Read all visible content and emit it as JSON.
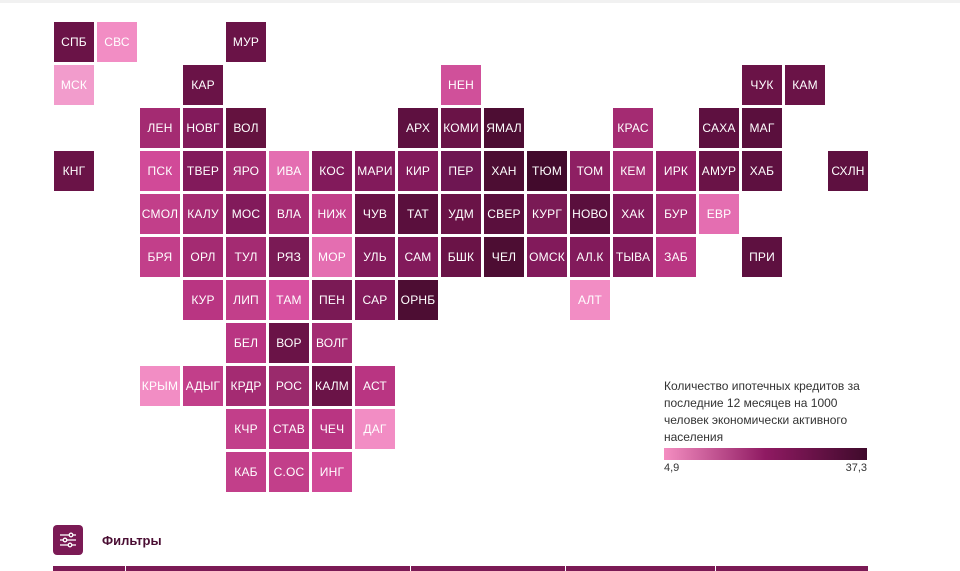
{
  "map": {
    "tiles": [
      {
        "label": "СПБ",
        "color": "#6a1347"
      },
      {
        "label": "СВС",
        "color": "#f28dc4"
      },
      {
        "label": "МУР",
        "color": "#6a1347"
      },
      {
        "label": "МСК",
        "color": "#f29ccc"
      },
      {
        "label": "КАР",
        "color": "#6a1347"
      },
      {
        "label": "НЕН",
        "color": "#d0509a"
      },
      {
        "label": "ЧУК",
        "color": "#6a1347"
      },
      {
        "label": "КАМ",
        "color": "#6a1347"
      },
      {
        "label": "ЛЕН",
        "color": "#a42b72"
      },
      {
        "label": "НОВГ",
        "color": "#821a5b"
      },
      {
        "label": "ВОЛ",
        "color": "#64123f"
      },
      {
        "label": "АРХ",
        "color": "#5e1040"
      },
      {
        "label": "КОМИ",
        "color": "#6a1347"
      },
      {
        "label": "ЯМАЛ",
        "color": "#4d0d33"
      },
      {
        "label": "КРАС",
        "color": "#a42b72"
      },
      {
        "label": "САХА",
        "color": "#5e1040"
      },
      {
        "label": "МАГ",
        "color": "#5a0f3d"
      },
      {
        "label": "КНГ",
        "color": "#6a1347"
      },
      {
        "label": "ПСК",
        "color": "#d14a98"
      },
      {
        "label": "ТВЕР",
        "color": "#821a5b"
      },
      {
        "label": "ЯРО",
        "color": "#a42b72"
      },
      {
        "label": "ИВА",
        "color": "#e46eb1"
      },
      {
        "label": "КОС",
        "color": "#821a5b"
      },
      {
        "label": "МАРИ",
        "color": "#821a5b"
      },
      {
        "label": "КИР",
        "color": "#821a5b"
      },
      {
        "label": "ПЕР",
        "color": "#6e1652"
      },
      {
        "label": "ХАН",
        "color": "#4d0d33"
      },
      {
        "label": "ТЮМ",
        "color": "#420a2c"
      },
      {
        "label": "ТОМ",
        "color": "#8e1f63"
      },
      {
        "label": "КЕМ",
        "color": "#a42b72"
      },
      {
        "label": "ИРК",
        "color": "#951f66"
      },
      {
        "label": "АМУР",
        "color": "#6a1347"
      },
      {
        "label": "ХАБ",
        "color": "#5e1040"
      },
      {
        "label": "СХЛН",
        "color": "#5e1040"
      },
      {
        "label": "СМОЛ",
        "color": "#c23f8a"
      },
      {
        "label": "КАЛУ",
        "color": "#a42b72"
      },
      {
        "label": "МОС",
        "color": "#821a5b"
      },
      {
        "label": "ВЛА",
        "color": "#a42b72"
      },
      {
        "label": "НИЖ",
        "color": "#c23f8a"
      },
      {
        "label": "ЧУВ",
        "color": "#6a1347"
      },
      {
        "label": "ТАТ",
        "color": "#5a0f3d"
      },
      {
        "label": "УДМ",
        "color": "#6a1347"
      },
      {
        "label": "СВЕР",
        "color": "#5a0f3d"
      },
      {
        "label": "КУРГ",
        "color": "#7a1a55"
      },
      {
        "label": "НОВО",
        "color": "#5a0f3d"
      },
      {
        "label": "ХАК",
        "color": "#821a5b"
      },
      {
        "label": "БУР",
        "color": "#a42b72"
      },
      {
        "label": "ЕВР",
        "color": "#e46eb1"
      },
      {
        "label": "БРЯ",
        "color": "#c23f8a"
      },
      {
        "label": "ОРЛ",
        "color": "#a42b72"
      },
      {
        "label": "ТУЛ",
        "color": "#a42b72"
      },
      {
        "label": "РЯЗ",
        "color": "#7a1a55"
      },
      {
        "label": "МОР",
        "color": "#e46eb1"
      },
      {
        "label": "УЛЬ",
        "color": "#821a5b"
      },
      {
        "label": "САМ",
        "color": "#821a5b"
      },
      {
        "label": "БШК",
        "color": "#6a1347"
      },
      {
        "label": "ЧЕЛ",
        "color": "#4d0d33"
      },
      {
        "label": "ОМСК",
        "color": "#821a5b"
      },
      {
        "label": "АЛ.К",
        "color": "#821a5b"
      },
      {
        "label": "ТЫВА",
        "color": "#821a5b"
      },
      {
        "label": "ЗАБ",
        "color": "#b93582"
      },
      {
        "label": "ПРИ",
        "color": "#5e1040"
      },
      {
        "label": "КУР",
        "color": "#b93582"
      },
      {
        "label": "ЛИП",
        "color": "#c23f8a"
      },
      {
        "label": "ТАМ",
        "color": "#d750a0"
      },
      {
        "label": "ПЕН",
        "color": "#7a1a55"
      },
      {
        "label": "САР",
        "color": "#821a5b"
      },
      {
        "label": "ОРНБ",
        "color": "#4d0d33"
      },
      {
        "label": "АЛТ",
        "color": "#f28dc4"
      },
      {
        "label": "БЕЛ",
        "color": "#b93582"
      },
      {
        "label": "ВОР",
        "color": "#6a1347"
      },
      {
        "label": "ВОЛГ",
        "color": "#a42b72"
      },
      {
        "label": "КРЫМ",
        "color": "#f28dc4"
      },
      {
        "label": "АДЫГ",
        "color": "#c23f8a"
      },
      {
        "label": "КРДР",
        "color": "#a42b72"
      },
      {
        "label": "РОС",
        "color": "#9a2a6c"
      },
      {
        "label": "КАЛМ",
        "color": "#6a1347"
      },
      {
        "label": "АСТ",
        "color": "#b93582"
      },
      {
        "label": "КЧР",
        "color": "#c23f8a"
      },
      {
        "label": "СТАВ",
        "color": "#b93582"
      },
      {
        "label": "ЧЕЧ",
        "color": "#b93582"
      },
      {
        "label": "ДАГ",
        "color": "#f28dc4"
      },
      {
        "label": "КАБ",
        "color": "#c23f8a"
      },
      {
        "label": "С.ОС",
        "color": "#c23f8a"
      },
      {
        "label": "ИНГ",
        "color": "#d14a98"
      }
    ]
  },
  "legend": {
    "title": "Количество ипотечных кредитов за последние 12 месяцев на 1000 человек экономически активного населения",
    "min_label": "4,9",
    "max_label": "37,3",
    "color_low": "#f48ec1",
    "color_high": "#3f0a2b"
  },
  "filters": {
    "label": "Фильтры",
    "icon": "sliders-icon"
  }
}
